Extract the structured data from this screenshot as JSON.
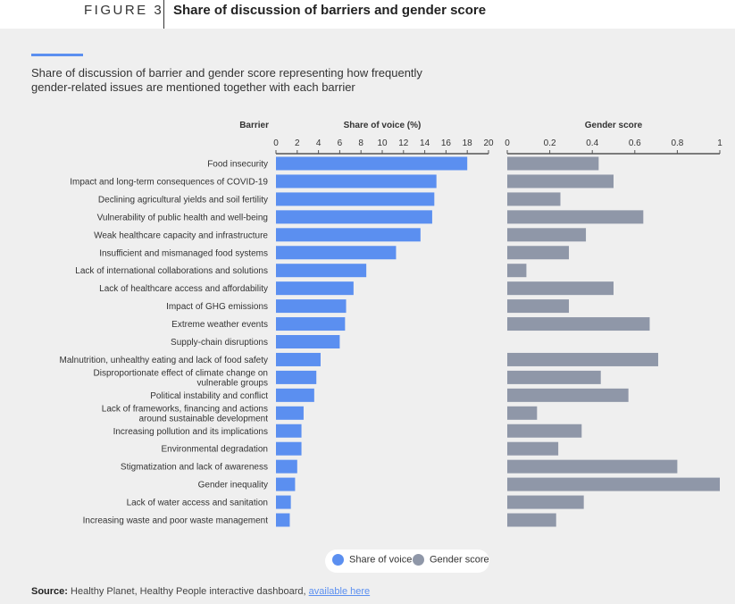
{
  "header": {
    "figure_label": "FIGURE 3",
    "title": "Share of discussion of barriers and gender score"
  },
  "subtitle": "Share of discussion of barrier and gender score representing how frequently gender-related issues are mentioned together with each barrier",
  "legend": {
    "share_label": "Share of voice",
    "gender_label": "Gender score"
  },
  "source": {
    "prefix": "Source:",
    "text": "Healthy Planet, Healthy People interactive dashboard,",
    "link_text": "available here"
  },
  "colors": {
    "share": "#5b8ff0",
    "gender": "#8f97a8",
    "accent": "#5b8ff0",
    "background": "#efefef"
  },
  "chart_data": {
    "type": "bar",
    "orientation": "horizontal",
    "category_header": "Barrier",
    "categories": [
      "Food insecurity",
      "Impact and long-term consequences of COVID-19",
      "Declining agricultural yields and soil fertility",
      "Vulnerability of public health and well-being",
      "Weak healthcare capacity and infrastructure",
      "Insufficient and mismanaged food systems",
      "Lack of international collaborations and solutions",
      "Lack of healthcare access and affordability",
      "Impact of GHG emissions",
      "Extreme weather events",
      "Supply-chain disruptions",
      "Malnutrition, unhealthy eating and lack of food safety",
      "Disproportionate effect of climate change on vulnerable groups",
      "Political instability and conflict",
      "Lack of frameworks, financing and actions around sustainable development",
      "Increasing pollution and its implications",
      "Environmental degradation",
      "Stigmatization and lack of awareness",
      "Gender inequality",
      "Lack of water access and sanitation",
      "Increasing waste and poor waste management"
    ],
    "series": [
      {
        "name": "Share of voice",
        "axis_title": "Share of voice (%)",
        "xlim": [
          0,
          20
        ],
        "ticks": [
          "0",
          "2",
          "4",
          "6",
          "8",
          "10",
          "12",
          "14",
          "16",
          "18",
          "20"
        ],
        "values": [
          18.0,
          15.1,
          14.9,
          14.7,
          13.6,
          11.3,
          8.5,
          7.3,
          6.6,
          6.5,
          6.0,
          4.2,
          3.8,
          3.6,
          2.6,
          2.4,
          2.4,
          2.0,
          1.8,
          1.4,
          1.3
        ]
      },
      {
        "name": "Gender score",
        "axis_title": "Gender score",
        "xlim": [
          0,
          1
        ],
        "ticks": [
          "0",
          "0.2",
          "0.4",
          "0.6",
          "0.8",
          "1"
        ],
        "values": [
          0.43,
          0.5,
          0.25,
          0.64,
          0.37,
          0.29,
          0.09,
          0.5,
          0.29,
          0.67,
          0.0,
          0.71,
          0.44,
          0.57,
          0.14,
          0.35,
          0.24,
          0.8,
          1.0,
          0.36,
          0.23
        ]
      }
    ],
    "legend_position": "bottom"
  }
}
